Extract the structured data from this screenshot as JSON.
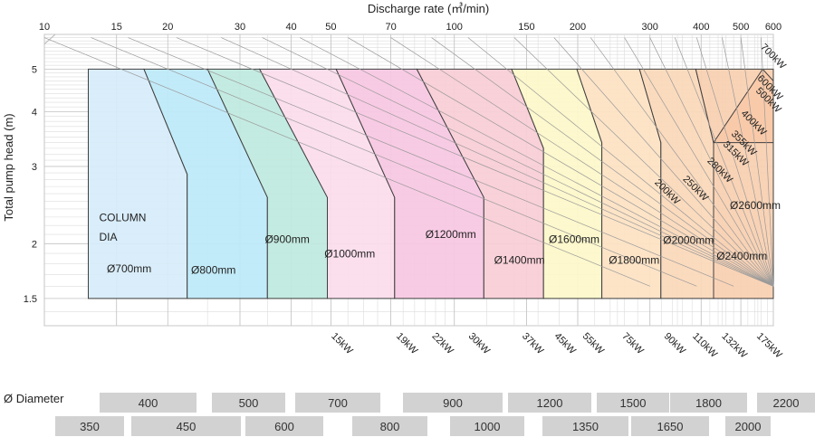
{
  "chart_data": {
    "type": "area",
    "title": "",
    "xlabel": "Discharge rate (㎥/min)",
    "ylabel": "Total pump head (m)",
    "x_scale": "log",
    "y_scale": "log",
    "xlim": [
      10,
      600
    ],
    "ylim": [
      1.3,
      6
    ],
    "x_ticks": [
      10,
      15,
      20,
      30,
      40,
      50,
      70,
      100,
      150,
      200,
      300,
      400,
      500,
      600
    ],
    "y_ticks": [
      1.5,
      2,
      3,
      4,
      5
    ],
    "grid": true,
    "column_dia_label": [
      "COLUMN",
      "DIA"
    ],
    "zones": [
      {
        "label": "Ø700mm",
        "color": "#d6ecfa",
        "polygon": [
          [
            12.8,
            5
          ],
          [
            17.5,
            5
          ],
          [
            22.3,
            2.88
          ],
          [
            22.3,
            1.5
          ],
          [
            12.8,
            1.5
          ]
        ]
      },
      {
        "label": "Ø800mm",
        "color": "#bde9f8",
        "polygon": [
          [
            17.5,
            5
          ],
          [
            25,
            5
          ],
          [
            35,
            2.55
          ],
          [
            35,
            1.5
          ],
          [
            22.3,
            1.5
          ],
          [
            22.3,
            2.88
          ]
        ]
      },
      {
        "label": "Ø900mm",
        "color": "#bfe9de",
        "polygon": [
          [
            25,
            5
          ],
          [
            33.5,
            5
          ],
          [
            49,
            2.55
          ],
          [
            49,
            1.5
          ],
          [
            35,
            1.5
          ],
          [
            35,
            2.55
          ]
        ]
      },
      {
        "label": "Ø1000mm",
        "color": "#fbdcec",
        "polygon": [
          [
            33.5,
            5
          ],
          [
            51.5,
            5
          ],
          [
            71.5,
            2.55
          ],
          [
            71.5,
            1.5
          ],
          [
            49,
            1.5
          ],
          [
            49,
            2.55
          ]
        ]
      },
      {
        "label": "Ø1200mm",
        "color": "#f7c7e2",
        "polygon": [
          [
            51.5,
            5
          ],
          [
            81,
            5
          ],
          [
            118,
            2.55
          ],
          [
            118,
            1.5
          ],
          [
            71.5,
            1.5
          ],
          [
            71.5,
            2.55
          ]
        ]
      },
      {
        "label": "Ø1400mm",
        "color": "#f8cdd6",
        "polygon": [
          [
            81,
            5
          ],
          [
            138,
            5
          ],
          [
            165,
            3.3
          ],
          [
            165,
            1.5
          ],
          [
            118,
            1.5
          ],
          [
            118,
            2.55
          ]
        ]
      },
      {
        "label": "Ø1600mm",
        "color": "#fdf7c9",
        "polygon": [
          [
            138,
            5
          ],
          [
            199,
            5
          ],
          [
            229,
            3.4
          ],
          [
            229,
            1.5
          ],
          [
            165,
            1.5
          ],
          [
            165,
            3.3
          ]
        ]
      },
      {
        "label": "Ø1800mm",
        "color": "#fde2c2",
        "polygon": [
          [
            199,
            5
          ],
          [
            283,
            5
          ],
          [
            319,
            3.4
          ],
          [
            319,
            1.5
          ],
          [
            229,
            1.5
          ],
          [
            229,
            3.4
          ]
        ]
      },
      {
        "label": "Ø2000mm",
        "color": "#fbd8b8",
        "polygon": [
          [
            283,
            5
          ],
          [
            388,
            5
          ],
          [
            429,
            3.4
          ],
          [
            429,
            1.5
          ],
          [
            319,
            1.5
          ],
          [
            319,
            3.4
          ]
        ]
      },
      {
        "label": "Ø2400mm",
        "color": "#f9cfb0",
        "polygon": [
          [
            388,
            5
          ],
          [
            429,
            3.4
          ],
          [
            429,
            1.5
          ],
          [
            600,
            1.5
          ],
          [
            600,
            5
          ]
        ]
      },
      {
        "label": "Ø2600mm",
        "color": "#f8c9a8",
        "polygon": [
          [
            429,
            3.4
          ],
          [
            565,
            5
          ],
          [
            600,
            4.7
          ],
          [
            600,
            3.4
          ]
        ]
      }
    ],
    "zone_label_pos": [
      [
        14.2,
        1.72
      ],
      [
        22.8,
        1.71
      ],
      [
        34.5,
        2.01
      ],
      [
        48.2,
        1.86
      ],
      [
        85,
        2.06
      ],
      [
        125,
        1.8
      ],
      [
        170,
        2.01
      ],
      [
        238,
        1.8
      ],
      [
        323,
        2.0
      ],
      [
        436,
        1.84
      ],
      [
        470,
        2.4
      ]
    ],
    "power_lines": [
      {
        "label": "15kW",
        "start": [
          10,
          5.9
        ],
        "end": [
          300,
          1.6
        ]
      },
      {
        "label": "19kW",
        "start": [
          13,
          5.9
        ],
        "end": [
          390,
          1.6
        ]
      },
      {
        "label": "22kW",
        "start": [
          16,
          5.9
        ],
        "end": [
          480,
          1.6
        ]
      },
      {
        "label": "30kW",
        "start": [
          21,
          5.9
        ],
        "end": [
          600,
          1.6
        ]
      },
      {
        "label": "37kW",
        "start": [
          27,
          5.9
        ],
        "end": [
          600,
          1.6
        ]
      },
      {
        "label": "45kW",
        "start": [
          34,
          5.9
        ],
        "end": [
          600,
          1.6
        ]
      },
      {
        "label": "55kW",
        "start": [
          42,
          5.9
        ],
        "end": [
          600,
          1.6
        ]
      },
      {
        "label": "75kW",
        "start": [
          55,
          5.9
        ],
        "end": [
          600,
          1.6
        ]
      },
      {
        "label": "90kW",
        "start": [
          70,
          5.9
        ],
        "end": [
          600,
          1.6
        ]
      },
      {
        "label": "110kW",
        "start": [
          88,
          5.9
        ],
        "end": [
          600,
          1.6
        ]
      },
      {
        "label": "132kW",
        "start": [
          108,
          5.9
        ],
        "end": [
          600,
          1.6
        ]
      },
      {
        "label": "175kW",
        "start": [
          140,
          5.9
        ],
        "end": [
          600,
          1.6
        ]
      },
      {
        "label": "200kW",
        "start": [
          175,
          5.9
        ],
        "end": [
          600,
          1.6
        ]
      },
      {
        "label": "250kW",
        "start": [
          215,
          5.9
        ],
        "end": [
          600,
          1.6
        ]
      },
      {
        "label": "280kW",
        "start": [
          260,
          5.9
        ],
        "end": [
          600,
          1.6
        ]
      },
      {
        "label": "315kW",
        "start": [
          300,
          5.9
        ],
        "end": [
          600,
          1.6
        ]
      },
      {
        "label": "355kW",
        "start": [
          345,
          5.9
        ],
        "end": [
          600,
          1.6
        ]
      },
      {
        "label": "400kW",
        "start": [
          390,
          5.9
        ],
        "end": [
          600,
          1.6
        ]
      },
      {
        "label": "500kW",
        "start": [
          450,
          5.9
        ],
        "end": [
          600,
          1.6
        ]
      },
      {
        "label": "600kW",
        "start": [
          500,
          5.9
        ],
        "end": [
          600,
          1.6
        ]
      },
      {
        "label": "700kW",
        "start": [
          560,
          5.9
        ],
        "end": [
          600,
          1.6
        ]
      }
    ],
    "bottom_kw_labels": [
      "15kW",
      "19kW",
      "22kW",
      "30kW",
      "37kW",
      "45kW",
      "55kW",
      "75kW",
      "90kW",
      "110kW",
      "132kW",
      "175kW"
    ],
    "bottom_kw_positions": [
      [
        50,
        1.3
      ],
      [
        72,
        1.3
      ],
      [
        88,
        1.3
      ],
      [
        108,
        1.3
      ],
      [
        146,
        1.3
      ],
      [
        175,
        1.3
      ],
      [
        205,
        1.3
      ],
      [
        256,
        1.3
      ],
      [
        324,
        1.3
      ],
      [
        380,
        1.3
      ],
      [
        448,
        1.3
      ],
      [
        545,
        1.3
      ]
    ],
    "right_kw_labels": [
      "200kW",
      "250kW",
      "280kW",
      "315kW",
      "355kW",
      "400kW",
      "500kW",
      "600kW",
      "700kW"
    ],
    "right_kw_positions": [
      [
        320,
        2.75
      ],
      [
        375,
        2.8
      ],
      [
        430,
        3.08
      ],
      [
        470,
        3.36
      ],
      [
        492,
        3.55
      ],
      [
        520,
        3.95
      ],
      [
        565,
        4.45
      ],
      [
        570,
        4.75
      ],
      [
        580,
        5.6
      ]
    ]
  },
  "diameter_strip": {
    "title": "Ø Diameter",
    "row1": [
      "400",
      "500",
      "700",
      "900",
      "1200",
      "1500",
      "1800",
      "2200"
    ],
    "row2": [
      "350",
      "450",
      "600",
      "800",
      "1000",
      "1350",
      "1650",
      "2000"
    ]
  }
}
